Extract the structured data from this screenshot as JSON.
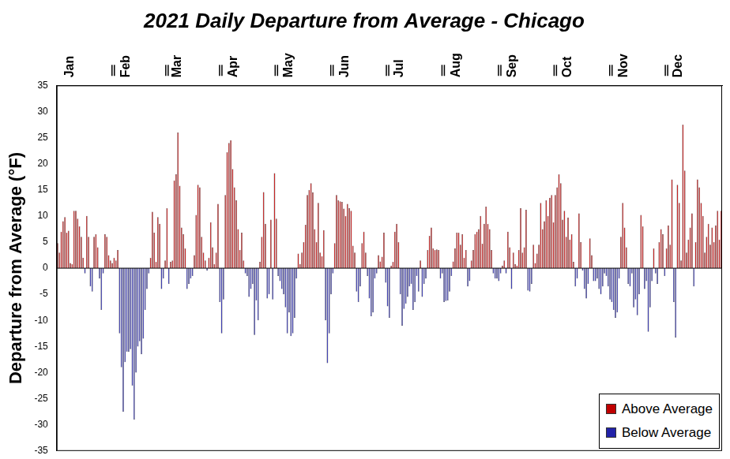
{
  "chart_data": {
    "type": "bar",
    "title": "2021 Daily Departure from Average - Chicago",
    "y_label": "Departure from Average (°F)",
    "categories": [
      null,
      null,
      null,
      null,
      null,
      null,
      null,
      null,
      null,
      null,
      null,
      null,
      null,
      null,
      null,
      "Jan",
      null,
      null,
      null,
      null,
      null,
      null,
      null,
      null,
      null,
      null,
      null,
      null,
      null,
      null,
      null,
      null,
      null,
      null,
      null,
      null,
      null,
      null,
      null,
      null,
      null,
      null,
      null,
      null,
      null,
      null,
      "Feb",
      null,
      null,
      null,
      null,
      null,
      null,
      null,
      null,
      null,
      null,
      null,
      null,
      null,
      null,
      null,
      null,
      null,
      null,
      null,
      null,
      null,
      null,
      null,
      null,
      null,
      null,
      null,
      "Mar",
      null,
      null,
      null,
      null,
      null,
      null,
      null,
      null,
      null,
      null,
      null,
      null,
      null,
      null,
      null,
      null,
      null,
      null,
      null,
      null,
      null,
      null,
      null,
      null,
      null,
      null,
      null,
      null,
      null,
      null,
      "Apr",
      null,
      null,
      null,
      null,
      null,
      null,
      null,
      null,
      null,
      null,
      null,
      null,
      null,
      null,
      null,
      null,
      null,
      null,
      null,
      null,
      null,
      null,
      null,
      null,
      null,
      null,
      null,
      null,
      null,
      "May",
      null,
      null,
      null,
      null,
      null,
      null,
      null,
      null,
      null,
      null,
      null,
      null,
      null,
      null,
      null,
      null,
      null,
      null,
      null,
      null,
      null,
      null,
      null,
      null,
      null,
      null,
      null,
      null,
      null,
      null,
      "Jun",
      null,
      null,
      null,
      null,
      null,
      null,
      null,
      null,
      null,
      null,
      null,
      null,
      null,
      null,
      null,
      null,
      null,
      null,
      null,
      null,
      null,
      null,
      null,
      null,
      null,
      null,
      null,
      null,
      null,
      "Jul",
      null,
      null,
      null,
      null,
      null,
      null,
      null,
      null,
      null,
      null,
      null,
      null,
      null,
      null,
      null,
      null,
      null,
      null,
      null,
      null,
      null,
      null,
      null,
      null,
      null,
      null,
      null,
      null,
      null,
      null,
      "Aug",
      null,
      null,
      null,
      null,
      null,
      null,
      null,
      null,
      null,
      null,
      null,
      null,
      null,
      null,
      null,
      null,
      null,
      null,
      null,
      null,
      null,
      null,
      null,
      null,
      null,
      null,
      null,
      null,
      null,
      null,
      "Sep",
      null,
      null,
      null,
      null,
      null,
      null,
      null,
      null,
      null,
      null,
      null,
      null,
      null,
      null,
      null,
      null,
      null,
      null,
      null,
      null,
      null,
      null,
      null,
      null,
      null,
      null,
      null,
      null,
      null,
      "Oct",
      null,
      null,
      null,
      null,
      null,
      null,
      null,
      null,
      null,
      null,
      null,
      null,
      null,
      null,
      null,
      null,
      null,
      null,
      null,
      null,
      null,
      null,
      null,
      null,
      null,
      null,
      null,
      null,
      null,
      null,
      "Nov",
      null,
      null,
      null,
      null,
      null,
      null,
      null,
      null,
      null,
      null,
      null,
      null,
      null,
      null,
      null,
      null,
      null,
      null,
      null,
      null,
      null,
      null,
      null,
      null,
      null,
      null,
      null,
      null,
      null,
      "Dec",
      null,
      null,
      null,
      null,
      null,
      null,
      null,
      null,
      null,
      null,
      null,
      null,
      null,
      null,
      null
    ],
    "series": [
      {
        "name": "Above Average",
        "color": "#c00000",
        "values": [
          4.8,
          3,
          7,
          9,
          9.8,
          6.8,
          7.2,
          1,
          0.8,
          11,
          11,
          9.5,
          8,
          6,
          2,
          null,
          10,
          6,
          null,
          null,
          6,
          6.5,
          4,
          null,
          null,
          null,
          6.5,
          6,
          2.5,
          1.5,
          1,
          2,
          1.5,
          3.5,
          null,
          null,
          null,
          null,
          null,
          null,
          null,
          null,
          null,
          null,
          null,
          null,
          null,
          null,
          null,
          null,
          null,
          2,
          10.8,
          6.8,
          1.2,
          9.8,
          8.5,
          null,
          null,
          1.5,
          11.5,
          null,
          1.2,
          1.5,
          16.8,
          18,
          26,
          15.8,
          7.8,
          6.5,
          3.8,
          null,
          null,
          null,
          null,
          2.5,
          10.2,
          16,
          15.5,
          6,
          3,
          1.5,
          null,
          2,
          8.8,
          4,
          0.8,
          3,
          12.3,
          null,
          null,
          null,
          14,
          22.2,
          24,
          24.5,
          19,
          15.5,
          13,
          7.5,
          3.5,
          6.8,
          1.5,
          null,
          null,
          null,
          null,
          null,
          null,
          null,
          null,
          1.2,
          6,
          14.6,
          8.5,
          null,
          null,
          9.3,
          null,
          18.2,
          9.5,
          null,
          null,
          null,
          null,
          null,
          null,
          null,
          null,
          null,
          null,
          null,
          2.8,
          0.8,
          3,
          5,
          8.3,
          14,
          15,
          16.3,
          14.5,
          7.5,
          5,
          12.5,
          3,
          2.3,
          7.3,
          null,
          null,
          null,
          null,
          null,
          4.8,
          14,
          13,
          12.8,
          12.7,
          11.4,
          10,
          12.3,
          11.5,
          11,
          4.3,
          3,
          null,
          null,
          null,
          4.8,
          7,
          3,
          null,
          null,
          null,
          null,
          null,
          null,
          2.5,
          1.3,
          2.2,
          6.8,
          null,
          null,
          null,
          0.5,
          1.2,
          7,
          8.5,
          5,
          null,
          null,
          null,
          null,
          null,
          null,
          null,
          null,
          null,
          null,
          null,
          1.5,
          null,
          null,
          null,
          3.5,
          6.2,
          7.8,
          3.8,
          3.5,
          3.6,
          3.5,
          null,
          null,
          null,
          null,
          null,
          null,
          null,
          1.3,
          3.8,
          6.8,
          6.8,
          4.5,
          6.5,
          2,
          3.5,
          null,
          null,
          1.5,
          3.5,
          6.5,
          7,
          7.5,
          10,
          4.7,
          8.5,
          11.8,
          8.5,
          7.5,
          3.5,
          null,
          null,
          null,
          null,
          null,
          0.5,
          1.5,
          null,
          7,
          4,
          null,
          3,
          0.8,
          0.5,
          3.5,
          11.5,
          3,
          4,
          11.2,
          null,
          null,
          null,
          4.5,
          1,
          2.8,
          4.5,
          12.5,
          7.5,
          9,
          13,
          10,
          13.5,
          14,
          8.8,
          14,
          15.5,
          18,
          16.3,
          9.3,
          11,
          6,
          9.7,
          5.5,
          6.5,
          1.2,
          null,
          null,
          10.5,
          5,
          null,
          null,
          null,
          null,
          5.7,
          2.5,
          null,
          null,
          null,
          null,
          null,
          null,
          null,
          null,
          null,
          null,
          null,
          null,
          null,
          null,
          null,
          6,
          12.5,
          7.8,
          4,
          null,
          null,
          null,
          null,
          null,
          null,
          null,
          10.2,
          8,
          null,
          null,
          null,
          null,
          null,
          3.8,
          null,
          null,
          5,
          7.5,
          6.5,
          null,
          3.8,
          8.2,
          4.5,
          17,
          null,
          null,
          16,
          12.5,
          1.5,
          27.5,
          18.7,
          3,
          5.5,
          7.8,
          10.5,
          null,
          5,
          17,
          15.5,
          12.5,
          10,
          3,
          6,
          8.5,
          4.5,
          7.8,
          5,
          8.2,
          11,
          5.5,
          11
        ]
      },
      {
        "name": "Below Average",
        "color": "#2222a8",
        "values": [
          null,
          null,
          null,
          null,
          null,
          null,
          null,
          null,
          null,
          null,
          null,
          null,
          null,
          null,
          null,
          -1,
          null,
          null,
          -3.5,
          -4.5,
          null,
          null,
          null,
          -2,
          -8,
          -1,
          null,
          null,
          null,
          null,
          null,
          null,
          null,
          null,
          -12.5,
          -19,
          -27.5,
          -18,
          -16,
          -16,
          -15.5,
          -22.5,
          -29,
          -20,
          -15,
          -14,
          -16.5,
          -13.5,
          -8,
          -4,
          -1,
          null,
          null,
          null,
          null,
          null,
          null,
          -4,
          -2,
          null,
          null,
          -3,
          null,
          null,
          null,
          null,
          null,
          null,
          null,
          null,
          null,
          -4,
          -3,
          -2,
          -1.5,
          null,
          null,
          null,
          null,
          null,
          null,
          null,
          -0.5,
          null,
          null,
          null,
          null,
          null,
          null,
          -6.5,
          -12.5,
          -6,
          null,
          null,
          null,
          null,
          null,
          null,
          null,
          null,
          null,
          null,
          null,
          -1,
          -1.5,
          -5.5,
          -4,
          -3,
          -12.8,
          -6.2,
          -10,
          null,
          null,
          null,
          null,
          -5.8,
          -5,
          null,
          -6,
          null,
          null,
          -1.5,
          -2.5,
          -4,
          -5,
          -7.5,
          -12.5,
          -8.5,
          -13,
          -12.5,
          -9.5,
          -2,
          null,
          null,
          null,
          null,
          null,
          null,
          null,
          null,
          null,
          null,
          null,
          null,
          null,
          null,
          null,
          -10,
          -18.2,
          -12.5,
          -5,
          -1,
          null,
          null,
          null,
          null,
          null,
          null,
          null,
          null,
          null,
          null,
          null,
          null,
          -4.5,
          -6.5,
          -3.5,
          null,
          null,
          null,
          -1.5,
          -5.8,
          -9.2,
          -8.5,
          -2,
          -1,
          null,
          null,
          null,
          null,
          -2.8,
          -7.3,
          -9.5,
          null,
          null,
          null,
          null,
          null,
          -5,
          -11,
          -7.8,
          -6.8,
          -5.5,
          -3.5,
          -3,
          -8,
          -6.5,
          -1.5,
          -4.5,
          null,
          -5.5,
          -3,
          -2,
          null,
          null,
          null,
          null,
          null,
          null,
          null,
          -2,
          -1,
          -6.5,
          -6.3,
          -6.2,
          -4.5,
          -1.5,
          null,
          null,
          null,
          null,
          null,
          null,
          null,
          null,
          -3.5,
          -2.5,
          null,
          null,
          null,
          null,
          null,
          null,
          null,
          null,
          null,
          null,
          null,
          null,
          -1,
          -2,
          -2,
          -2.5,
          -1,
          null,
          null,
          -1,
          null,
          null,
          -4,
          null,
          null,
          null,
          null,
          null,
          null,
          null,
          null,
          -4.3,
          -4.5,
          -3,
          null,
          null,
          null,
          null,
          null,
          null,
          null,
          null,
          null,
          null,
          null,
          null,
          null,
          null,
          null,
          null,
          null,
          null,
          null,
          null,
          null,
          null,
          null,
          -3.5,
          -2,
          null,
          null,
          -0.5,
          -4,
          -5.8,
          -3,
          null,
          null,
          -2.5,
          -2.5,
          -2,
          -4,
          -5,
          -3.5,
          -1,
          -1.5,
          -3.5,
          -6,
          -6.5,
          -8,
          -9.5,
          -8.5,
          -2,
          null,
          null,
          null,
          null,
          -3,
          -3.5,
          -1,
          -7.5,
          -6,
          -9,
          -5,
          null,
          null,
          -4,
          -2.5,
          -12.2,
          -7.5,
          -2.5,
          null,
          -1,
          -3,
          null,
          null,
          null,
          -1.5,
          null,
          null,
          null,
          null,
          -6.5,
          -13.3,
          null,
          null,
          null,
          null,
          null,
          null,
          null,
          null,
          null,
          -3.5,
          null,
          null,
          null,
          null,
          null,
          null,
          null,
          null,
          null,
          null,
          null,
          null,
          null,
          null,
          null
        ]
      }
    ],
    "ylim": [
      -35,
      35
    ],
    "yticks": [
      -35,
      -30,
      -25,
      -20,
      -15,
      -10,
      -5,
      0,
      5,
      10,
      15,
      20,
      25,
      30,
      35
    ],
    "grid": false,
    "legend": "lower right"
  }
}
